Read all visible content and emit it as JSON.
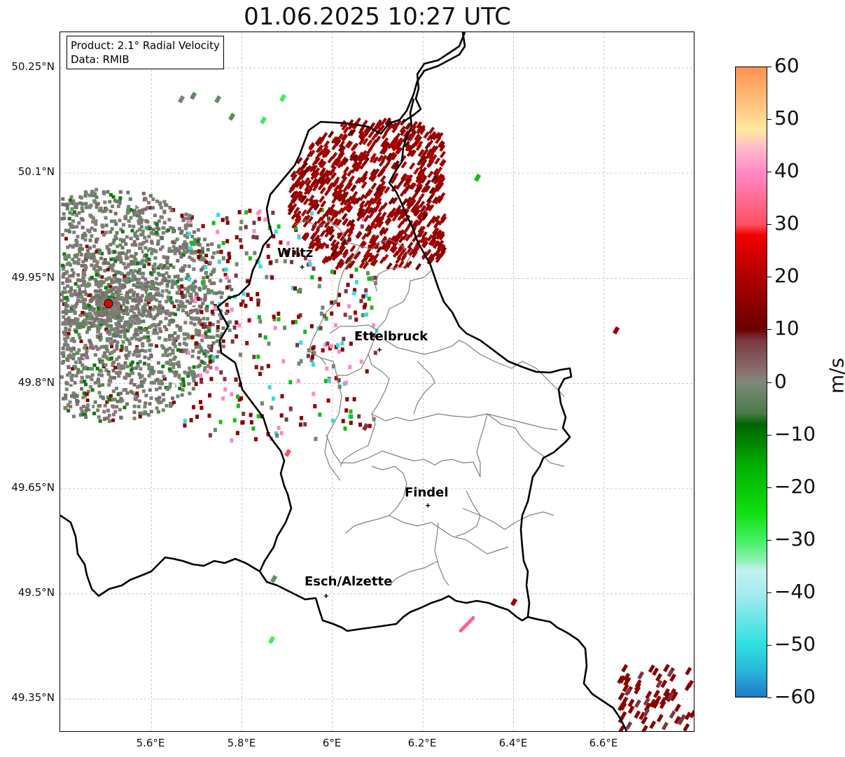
{
  "title": "01.06.2025 10:27 UTC",
  "info": {
    "product": "Product: 2.1° Radial Velocity",
    "data": "Data: RMIB"
  },
  "lat_ticks": [
    "50.25°N",
    "50.1°N",
    "49.95°N",
    "49.8°N",
    "49.65°N",
    "49.5°N",
    "49.35°N"
  ],
  "lon_ticks": [
    "5.6°E",
    "5.8°E",
    "6°E",
    "6.2°E",
    "6.4°E",
    "6.6°E"
  ],
  "cities": [
    {
      "name": "Wiltz",
      "lon": 5.933,
      "lat": 49.966
    },
    {
      "name": "Ettelbruck",
      "lon": 6.104,
      "lat": 49.848
    },
    {
      "name": "Findel",
      "lon": 6.211,
      "lat": 49.626
    },
    {
      "name": "Esch/Alzette",
      "lon": 5.986,
      "lat": 49.497
    }
  ],
  "radar_site": {
    "lon": 5.505,
    "lat": 49.914
  },
  "colorbar": {
    "unit": "m/s",
    "min": -60,
    "max": 60,
    "ticks": [
      "60",
      "50",
      "40",
      "30",
      "20",
      "10",
      "0",
      "−10",
      "−20",
      "−30",
      "−40",
      "−50",
      "−60"
    ],
    "stops": [
      {
        "v": -60,
        "c": "#1f78c8"
      },
      {
        "v": -55,
        "c": "#27b8d8"
      },
      {
        "v": -50,
        "c": "#2fe0e0"
      },
      {
        "v": -40,
        "c": "#a8ecf0"
      },
      {
        "v": -36,
        "c": "#c4f0f0"
      },
      {
        "v": -34,
        "c": "#90f0b0"
      },
      {
        "v": -30,
        "c": "#40f060"
      },
      {
        "v": -25,
        "c": "#10e010"
      },
      {
        "v": -16,
        "c": "#00b000"
      },
      {
        "v": -8,
        "c": "#006400"
      },
      {
        "v": -6,
        "c": "#4a7a4a"
      },
      {
        "v": 0,
        "c": "#7e8a7a"
      },
      {
        "v": 2,
        "c": "#8a7070"
      },
      {
        "v": 8,
        "c": "#7a3840"
      },
      {
        "v": 10,
        "c": "#6a0000"
      },
      {
        "v": 20,
        "c": "#b00000"
      },
      {
        "v": 28,
        "c": "#f00000"
      },
      {
        "v": 30,
        "c": "#ff5060"
      },
      {
        "v": 40,
        "c": "#ff88c8"
      },
      {
        "v": 45,
        "c": "#ffc0c8"
      },
      {
        "v": 48,
        "c": "#ffe8a0"
      },
      {
        "v": 60,
        "c": "#ff9050"
      }
    ]
  }
}
